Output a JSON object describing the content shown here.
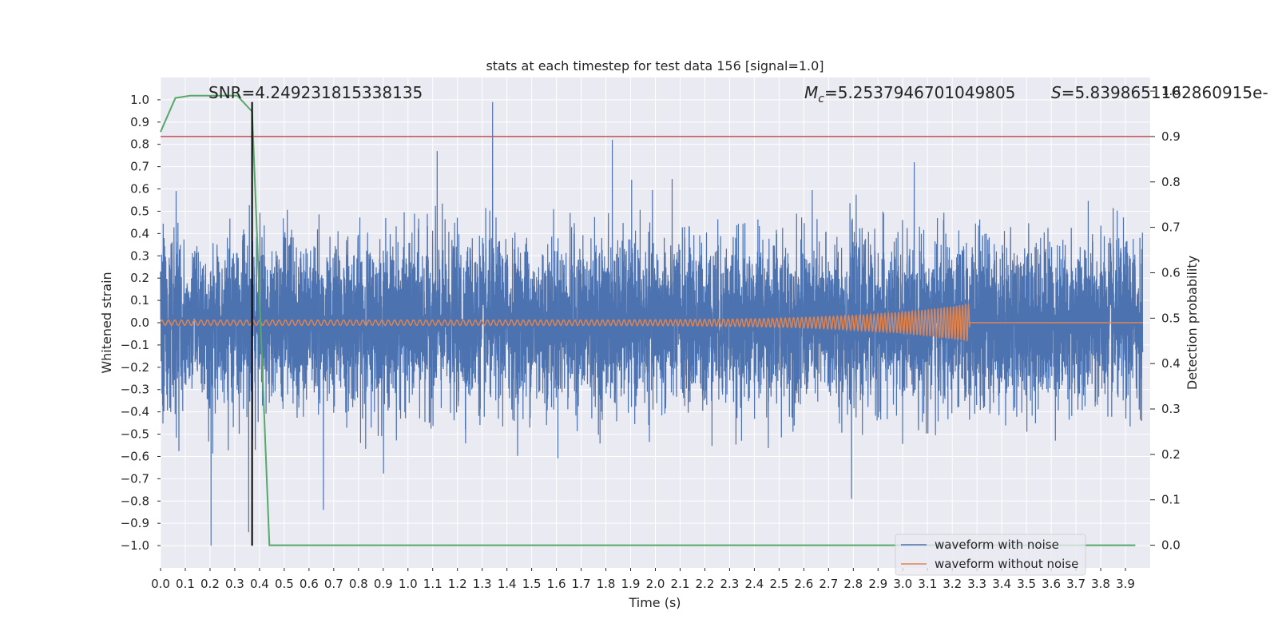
{
  "chart_data": {
    "type": "line",
    "title": "stats at each timestep for test data 156 [signal=1.0]",
    "xlabel": "Time (s)",
    "ylabel": "Whitened strain",
    "y2label": "Detection probability",
    "xlim": [
      0.0,
      4.0
    ],
    "ylim": [
      -1.1,
      1.1
    ],
    "y2lim": [
      -0.05,
      1.03
    ],
    "grid": true,
    "legend_position": "bottom-right",
    "x_ticks": [
      0.0,
      0.1,
      0.2,
      0.3,
      0.4,
      0.5,
      0.6,
      0.7,
      0.8,
      0.9,
      1.0,
      1.1,
      1.2,
      1.3,
      1.4,
      1.5,
      1.6,
      1.7,
      1.8,
      1.9,
      2.0,
      2.1,
      2.2,
      2.3,
      2.4,
      2.5,
      2.6,
      2.7,
      2.8,
      2.9,
      3.0,
      3.1,
      3.2,
      3.3,
      3.4,
      3.5,
      3.6,
      3.7,
      3.8,
      3.9
    ],
    "x_tick_labels": [
      "0.0",
      "0.1",
      "0.2",
      "0.3",
      "0.4",
      "0.5",
      "0.6",
      "0.7",
      "0.8",
      "0.9",
      "1.0",
      "1.1",
      "1.2",
      "1.3",
      "1.4",
      "1.5",
      "1.6",
      "1.7",
      "1.8",
      "1.9",
      "2.0",
      "2.1",
      "2.2",
      "2.3",
      "2.4",
      "2.5",
      "2.6",
      "2.7",
      "2.8",
      "2.9",
      "3.0",
      "3.1",
      "3.2",
      "3.3",
      "3.4",
      "3.5",
      "3.6",
      "3.7",
      "3.8",
      "3.9"
    ],
    "y_ticks": [
      1.0,
      0.9,
      0.8,
      0.7,
      0.6,
      0.5,
      0.4,
      0.3,
      0.2,
      0.1,
      0.0,
      -0.1,
      -0.2,
      -0.3,
      -0.4,
      -0.5,
      -0.6,
      -0.7,
      -0.8,
      -0.9,
      -1.0
    ],
    "y_tick_labels": [
      "1.0",
      "0.9",
      "0.8",
      "0.7",
      "0.6",
      "0.5",
      "0.4",
      "0.3",
      "0.2",
      "0.1",
      "0.0",
      "−0.1",
      "−0.2",
      "−0.3",
      "−0.4",
      "−0.5",
      "−0.6",
      "−0.7",
      "−0.8",
      "−0.9",
      "−1.0"
    ],
    "y2_ticks": [
      1.0,
      0.9,
      0.8,
      0.7,
      0.6,
      0.5,
      0.4,
      0.3,
      0.2,
      0.1,
      0.0
    ],
    "y2_tick_labels": [
      "1.0",
      "0.9",
      "0.8",
      "0.7",
      "0.6",
      "0.5",
      "0.4",
      "0.3",
      "0.2",
      "0.1",
      "0.0"
    ],
    "annotations": {
      "snr": "SNR=4.249231815338135",
      "mc_symbol": "M",
      "mc_sub": "c",
      "mc_value": "=5.2537946701049805",
      "s_symbol": "S",
      "s_value": "=5.839865116286091​5e-"
    },
    "vertical_marker_x": 0.37,
    "threshold_y2": 0.9,
    "series": [
      {
        "name": "waveform with noise",
        "color": "#4c72b0",
        "axis": "left",
        "description_noise": {
          "sample_rate": 2048,
          "sigma": 0.2,
          "peaks": [
            [
              0.204,
              -1.0
            ],
            [
              0.356,
              -0.94
            ],
            [
              0.37,
              0.65
            ],
            [
              0.658,
              -0.84
            ],
            [
              1.342,
              0.99
            ],
            [
              1.118,
              0.77
            ],
            [
              1.826,
              0.82
            ],
            [
              2.793,
              -0.79
            ],
            [
              0.383,
              -0.57
            ]
          ]
        }
      },
      {
        "name": "waveform without noise",
        "color": "#dd8452",
        "axis": "left",
        "chirp": {
          "t_end": 3.27,
          "amp_start": 0.012,
          "amp_end": 0.085,
          "cycles_start_per_s": 38
        }
      },
      {
        "name": "detection probability",
        "color": "#55a868",
        "axis": "right",
        "x": [
          0.0,
          0.06,
          0.12,
          0.18,
          0.25,
          0.31,
          0.37,
          0.44,
          3.94
        ],
        "y": [
          0.91,
          0.985,
          0.99,
          0.99,
          0.99,
          0.99,
          0.955,
          0.0,
          0.0
        ]
      }
    ],
    "colors": {
      "threshold": "#c44e52",
      "marker": "#000000",
      "grid": "#ffffff",
      "plot_bg": "#eaeaf2"
    }
  }
}
